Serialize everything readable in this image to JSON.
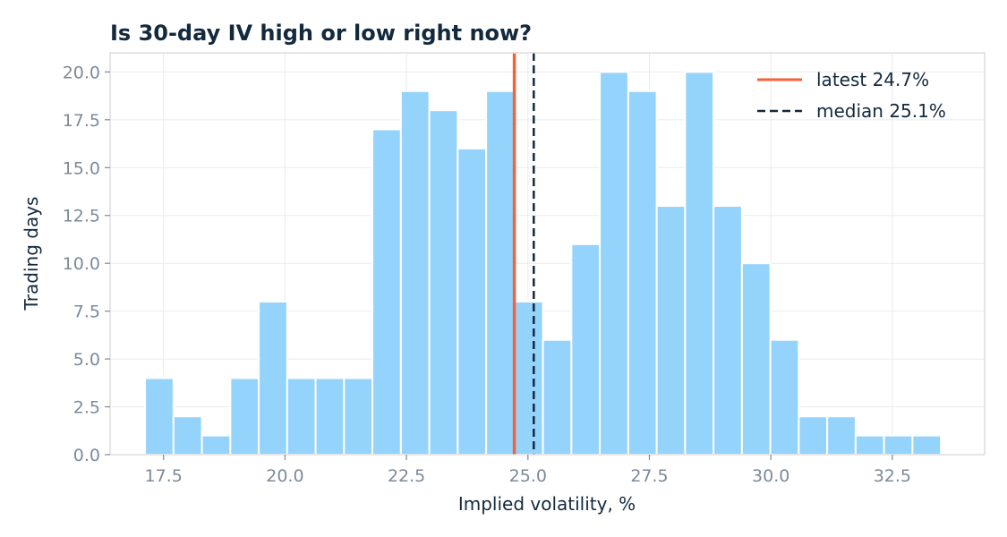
{
  "chart_data": {
    "type": "bar",
    "title": "Is 30-day IV high or low right now?",
    "xlabel": "Implied volatility, %",
    "ylabel": "Trading days",
    "xlim": [
      16.4,
      34.4
    ],
    "ylim": [
      0,
      21
    ],
    "x_ticks": [
      17.5,
      20.0,
      22.5,
      25.0,
      27.5,
      30.0,
      32.5
    ],
    "x_tick_labels": [
      "17.5",
      "20.0",
      "22.5",
      "25.0",
      "27.5",
      "30.0",
      "32.5"
    ],
    "y_ticks": [
      0,
      2.5,
      5,
      7.5,
      10,
      12.5,
      15,
      17.5,
      20
    ],
    "y_tick_labels": [
      "0.0",
      "2.5",
      "5.0",
      "7.5",
      "10.0",
      "12.5",
      "15.0",
      "17.5",
      "20.0"
    ],
    "grid": true,
    "bins": {
      "start": 17.12,
      "width": 0.585,
      "counts": [
        4,
        2,
        1,
        4,
        8,
        4,
        4,
        4,
        17,
        19,
        18,
        16,
        19,
        8,
        6,
        11,
        20,
        19,
        13,
        20,
        13,
        10,
        6,
        2,
        2,
        1,
        1,
        1
      ]
    },
    "bar_color": "#94d3fb",
    "reference_lines": [
      {
        "name": "latest 24.7%",
        "x": 24.72,
        "style": "solid",
        "color": "#f4623a"
      },
      {
        "name": "median 25.1%",
        "x": 25.12,
        "style": "dashed",
        "color": "#13293d"
      }
    ],
    "legend_position": "top-right"
  }
}
